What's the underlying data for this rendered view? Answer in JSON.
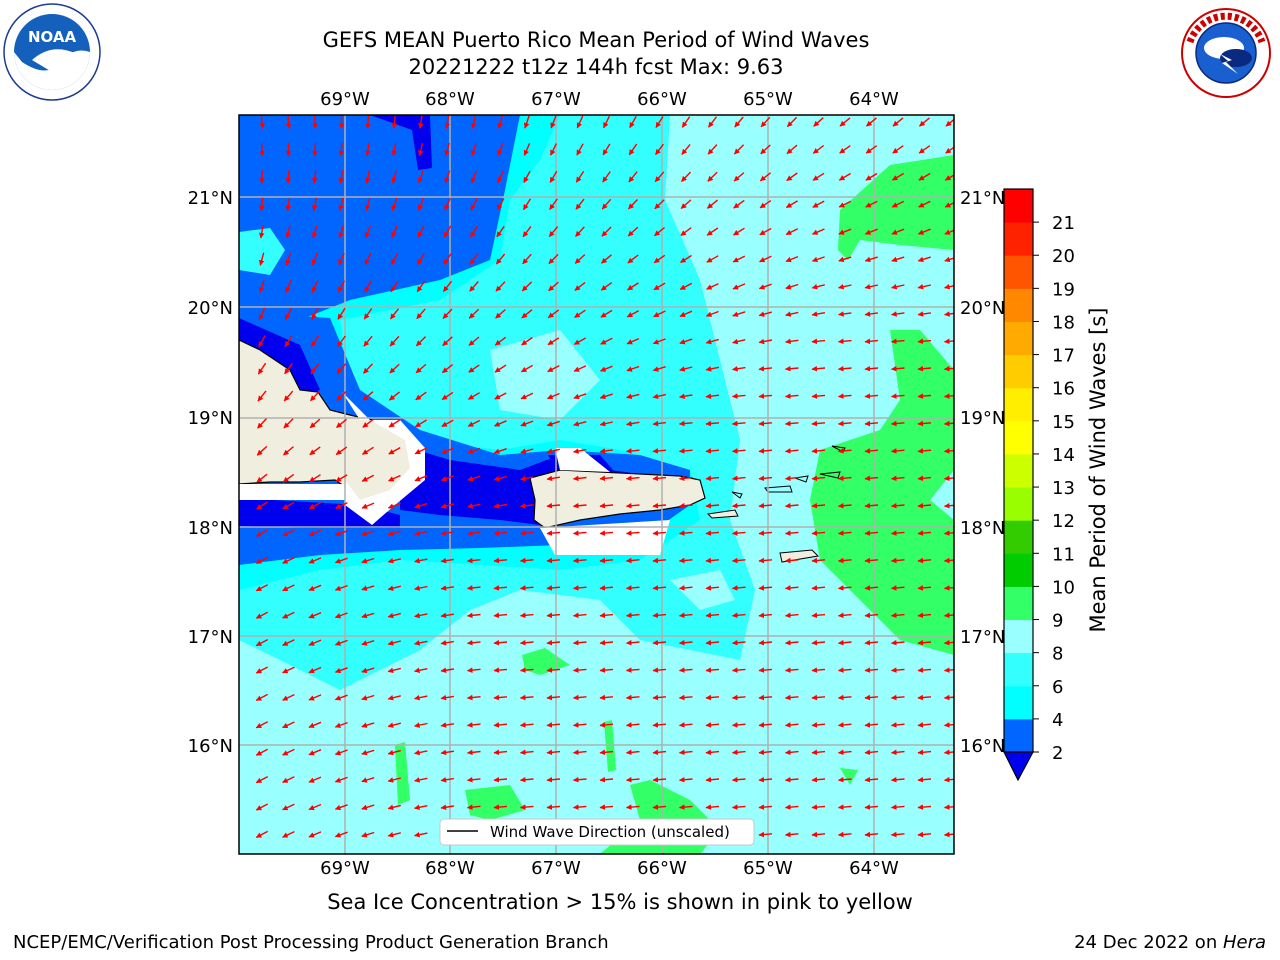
{
  "title": {
    "line1": "GEFS MEAN Puerto Rico Mean Period of Wind Waves",
    "line2": "20221222 t12z 144h fcst   Max: 9.63"
  },
  "logos": {
    "left": "NOAA",
    "right": "NATIONAL WEATHER SERVICE"
  },
  "map": {
    "lon_labels": [
      "69°W",
      "68°W",
      "67°W",
      "66°W",
      "65°W",
      "64°W"
    ],
    "lat_labels": [
      "21°N",
      "20°N",
      "19°N",
      "18°N",
      "17°N",
      "16°N"
    ],
    "legend_label": "Wind Wave Direction (unscaled)",
    "arrow_color": "#ff0000",
    "land_color": "#efeedf"
  },
  "colorbar": {
    "label": "Mean Period of Wind Waves [s]",
    "ticks": [
      "2",
      "4",
      "6",
      "8",
      "9",
      "10",
      "11",
      "12",
      "13",
      "14",
      "15",
      "16",
      "17",
      "18",
      "19",
      "20",
      "21"
    ],
    "colors": [
      "#0066ff",
      "#00ffff",
      "#33ffff",
      "#99ffff",
      "#33ff66",
      "#00cc00",
      "#33cc00",
      "#99ff00",
      "#ccff00",
      "#ffff00",
      "#ffee00",
      "#ffcc00",
      "#ffaa00",
      "#ff8800",
      "#ff5500",
      "#ff2200",
      "#ff0000"
    ]
  },
  "caption": "Sea Ice Concentration > 15% is shown in pink to yellow",
  "footer": {
    "left": "NCEP/EMC/Verification Post Processing Product Generation Branch",
    "date": "24 Dec 2022 on ",
    "machine": "Hera"
  }
}
